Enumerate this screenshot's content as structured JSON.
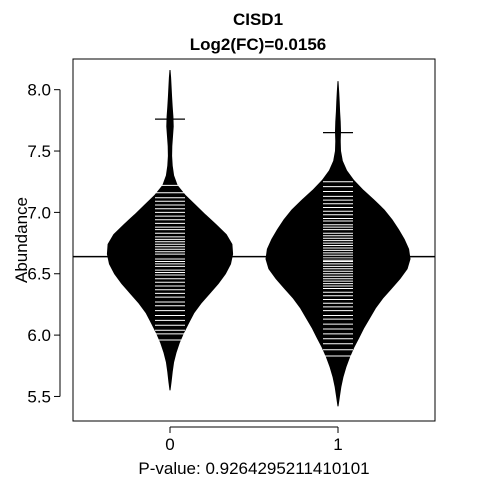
{
  "chart_data": {
    "type": "beanplot",
    "title": "CISD1",
    "subtitle": "Log2(FC)=0.0156",
    "xlabel": "P-value: 0.9264295211410101",
    "ylabel": "Abundance",
    "categories": [
      "0",
      "1"
    ],
    "ylim": [
      5.3,
      8.25
    ],
    "yticks": [
      5.5,
      6.0,
      6.5,
      7.0,
      7.5,
      8.0
    ],
    "ytick_labels": [
      "5.5",
      "6.0",
      "6.5",
      "7.0",
      "7.5",
      "8.0"
    ],
    "overall_mean": 6.64,
    "grid": false,
    "series": [
      {
        "category": "0",
        "median": 7.76,
        "y_min": 5.55,
        "y_max": 8.16,
        "density": [
          [
            5.55,
            0.0
          ],
          [
            5.62,
            0.015
          ],
          [
            5.7,
            0.03
          ],
          [
            5.78,
            0.05
          ],
          [
            5.86,
            0.085
          ],
          [
            5.94,
            0.13
          ],
          [
            6.02,
            0.19
          ],
          [
            6.1,
            0.26
          ],
          [
            6.18,
            0.33
          ],
          [
            6.26,
            0.43
          ],
          [
            6.34,
            0.55
          ],
          [
            6.42,
            0.67
          ],
          [
            6.5,
            0.77
          ],
          [
            6.58,
            0.84
          ],
          [
            6.66,
            0.87
          ],
          [
            6.74,
            0.86
          ],
          [
            6.82,
            0.78
          ],
          [
            6.9,
            0.64
          ],
          [
            6.98,
            0.49
          ],
          [
            7.06,
            0.35
          ],
          [
            7.14,
            0.21
          ],
          [
            7.22,
            0.1
          ],
          [
            7.3,
            0.05
          ],
          [
            7.38,
            0.03
          ],
          [
            7.46,
            0.022
          ],
          [
            7.54,
            0.025
          ],
          [
            7.62,
            0.035
          ],
          [
            7.7,
            0.045
          ],
          [
            7.78,
            0.04
          ],
          [
            7.86,
            0.03
          ],
          [
            7.94,
            0.022
          ],
          [
            8.02,
            0.015
          ],
          [
            8.1,
            0.008
          ],
          [
            8.16,
            0.0
          ]
        ],
        "points": [
          5.96,
          6.01,
          6.04,
          6.08,
          6.12,
          6.16,
          6.2,
          6.24,
          6.27,
          6.31,
          6.34,
          6.37,
          6.4,
          6.43,
          6.46,
          6.49,
          6.51,
          6.53,
          6.56,
          6.58,
          6.6,
          6.62,
          6.64,
          6.66,
          6.68,
          6.7,
          6.72,
          6.74,
          6.76,
          6.78,
          6.8,
          6.83,
          6.86,
          6.88,
          6.91,
          6.94,
          6.97,
          7.0,
          7.03,
          7.06,
          7.09,
          7.12,
          7.16,
          7.22
        ]
      },
      {
        "category": "1",
        "median": 7.65,
        "y_min": 5.42,
        "y_max": 8.07,
        "density": [
          [
            5.42,
            0.0
          ],
          [
            5.5,
            0.02
          ],
          [
            5.58,
            0.04
          ],
          [
            5.66,
            0.07
          ],
          [
            5.74,
            0.11
          ],
          [
            5.82,
            0.16
          ],
          [
            5.9,
            0.22
          ],
          [
            5.98,
            0.29
          ],
          [
            6.06,
            0.36
          ],
          [
            6.14,
            0.44
          ],
          [
            6.22,
            0.52
          ],
          [
            6.3,
            0.62
          ],
          [
            6.38,
            0.74
          ],
          [
            6.46,
            0.86
          ],
          [
            6.54,
            0.96
          ],
          [
            6.62,
            1.0
          ],
          [
            6.7,
            0.98
          ],
          [
            6.78,
            0.92
          ],
          [
            6.86,
            0.84
          ],
          [
            6.94,
            0.75
          ],
          [
            7.02,
            0.64
          ],
          [
            7.1,
            0.5
          ],
          [
            7.18,
            0.35
          ],
          [
            7.26,
            0.22
          ],
          [
            7.34,
            0.12
          ],
          [
            7.42,
            0.06
          ],
          [
            7.5,
            0.035
          ],
          [
            7.58,
            0.03
          ],
          [
            7.66,
            0.035
          ],
          [
            7.74,
            0.03
          ],
          [
            7.82,
            0.022
          ],
          [
            7.9,
            0.016
          ],
          [
            7.98,
            0.01
          ],
          [
            8.07,
            0.0
          ]
        ],
        "points": [
          5.83,
          5.88,
          5.93,
          5.97,
          6.01,
          6.05,
          6.09,
          6.13,
          6.16,
          6.2,
          6.23,
          6.26,
          6.29,
          6.32,
          6.35,
          6.38,
          6.4,
          6.42,
          6.44,
          6.46,
          6.48,
          6.5,
          6.52,
          6.54,
          6.56,
          6.58,
          6.6,
          6.61,
          6.63,
          6.65,
          6.67,
          6.69,
          6.71,
          6.73,
          6.75,
          6.77,
          6.79,
          6.81,
          6.83,
          6.86,
          6.88,
          6.9,
          6.93,
          6.95,
          6.98,
          7.01,
          7.04,
          7.07,
          7.1,
          7.13,
          7.17,
          7.21,
          7.25
        ]
      }
    ]
  }
}
